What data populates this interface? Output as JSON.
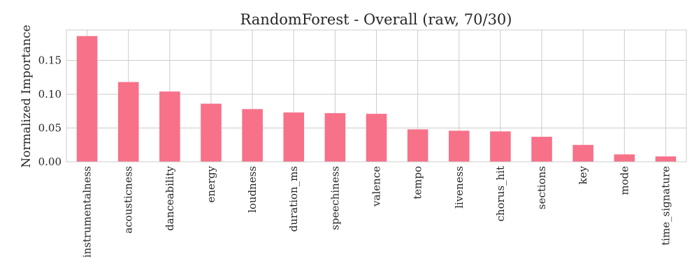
{
  "chart_data": {
    "type": "bar",
    "title": "RandomForest - Overall (raw, 70/30)",
    "xlabel": "",
    "ylabel": "Normalized Importance",
    "categories": [
      "instrumentalness",
      "acousticness",
      "danceability",
      "energy",
      "loudness",
      "duration_ms",
      "speechiness",
      "valence",
      "tempo",
      "liveness",
      "chorus_hit",
      "sections",
      "key",
      "mode",
      "time_signature"
    ],
    "values": [
      0.186,
      0.118,
      0.104,
      0.086,
      0.078,
      0.073,
      0.072,
      0.071,
      0.048,
      0.046,
      0.045,
      0.037,
      0.025,
      0.011,
      0.008
    ],
    "ylim": [
      0,
      0.195
    ],
    "yticks": [
      0.0,
      0.05,
      0.1,
      0.15
    ],
    "ytick_labels": [
      "0.00",
      "0.05",
      "0.10",
      "0.15"
    ],
    "grid": true,
    "bar_color": "#f77189"
  }
}
